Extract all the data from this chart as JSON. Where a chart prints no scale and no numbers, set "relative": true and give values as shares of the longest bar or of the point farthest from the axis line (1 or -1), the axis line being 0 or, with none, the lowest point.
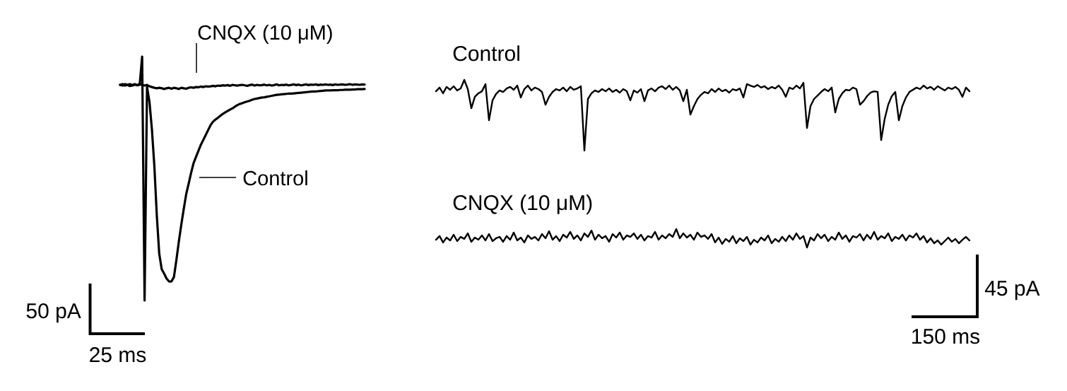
{
  "chart_data": [
    {
      "type": "line",
      "relative": true,
      "categories": [
        null,
        null,
        null,
        null,
        null,
        null,
        null,
        null,
        null,
        null,
        null,
        null,
        null,
        null,
        null,
        null,
        null,
        null,
        null,
        null,
        null,
        null,
        null,
        null,
        null,
        null,
        null,
        null,
        null,
        null,
        null,
        null,
        null,
        null,
        null,
        null,
        null,
        null,
        null,
        null,
        null,
        null,
        null,
        null,
        null,
        null,
        null,
        null,
        null,
        null,
        null,
        null,
        null,
        null,
        null,
        null,
        null,
        null,
        null,
        null,
        null,
        null,
        null,
        null,
        null,
        null,
        null,
        null,
        null,
        null,
        null,
        null,
        null,
        null,
        null,
        null,
        null,
        null,
        null,
        null,
        null,
        null,
        null,
        null,
        null,
        null,
        null,
        null,
        null,
        null,
        null,
        null,
        null,
        null,
        null,
        null,
        null,
        null,
        null,
        null,
        null
      ],
      "series": [
        {
          "name": "Control",
          "color": "#000000",
          "values": [
            0.884,
            0.881,
            0.887,
            0.884,
            0.879,
            0.884,
            0.887,
            0.882,
            0.884,
            1.0,
            0.0,
            0.875,
            0.814,
            0.701,
            0.551,
            0.348,
            0.191,
            0.128,
            0.11,
            0.09,
            0.078,
            0.078,
            0.096,
            0.165,
            0.241,
            0.31,
            0.374,
            0.435,
            0.478,
            0.522,
            0.562,
            0.588,
            0.613,
            0.638,
            0.658,
            0.678,
            0.699,
            0.719,
            0.733,
            0.742,
            0.749,
            0.757,
            0.765,
            0.771,
            0.777,
            0.783,
            0.788,
            0.795,
            0.801,
            0.806,
            0.809,
            0.813,
            0.816,
            0.819,
            0.823,
            0.826,
            0.828,
            0.83,
            0.832,
            0.833,
            0.835,
            0.837,
            0.839,
            0.841,
            0.843,
            0.844,
            0.845,
            0.846,
            0.847,
            0.848,
            0.848,
            0.849,
            0.85,
            0.851,
            0.852,
            0.853,
            0.854,
            0.855,
            0.856,
            0.857,
            0.857,
            0.858,
            0.859,
            0.86,
            0.861,
            0.861,
            0.861,
            0.862,
            0.862,
            0.862,
            0.863,
            0.863,
            0.864,
            0.864,
            0.864,
            0.865,
            0.865,
            0.866,
            0.866,
            0.866,
            0.867
          ]
        },
        {
          "name": "CNQX (10 μM)",
          "color": "#000000",
          "values": [
            0.884,
            0.887,
            0.881,
            0.884,
            0.887,
            0.881,
            0.884,
            0.884,
            0.887,
            0.884,
            0.881,
            0.884,
            0.878,
            0.875,
            0.872,
            0.87,
            0.872,
            0.87,
            0.867,
            0.87,
            0.872,
            0.868,
            0.872,
            0.87,
            0.867,
            0.872,
            0.87,
            0.868,
            0.872,
            0.874,
            0.872,
            0.875,
            0.874,
            0.877,
            0.875,
            0.878,
            0.877,
            0.878,
            0.88,
            0.878,
            0.881,
            0.88,
            0.882,
            0.881,
            0.883,
            0.88,
            0.884,
            0.882,
            0.881,
            0.883,
            0.884,
            0.882,
            0.88,
            0.883,
            0.885,
            0.881,
            0.884,
            0.882,
            0.883,
            0.885,
            0.882,
            0.884,
            0.881,
            0.883,
            0.886,
            0.882,
            0.884,
            0.883,
            0.885,
            0.882,
            0.884,
            0.886,
            0.883,
            0.885,
            0.882,
            0.884,
            0.886,
            0.883,
            0.885,
            0.884,
            0.886,
            0.883,
            0.885,
            0.884,
            0.886,
            0.884,
            0.885,
            0.883,
            0.886,
            0.884,
            0.885,
            0.886,
            0.884,
            0.885,
            0.887,
            0.884,
            0.886,
            0.885,
            0.884,
            0.886,
            0.885
          ]
        }
      ],
      "annotations": [
        "50 pA",
        "25 ms"
      ]
    },
    {
      "type": "line",
      "relative": true,
      "categories": [
        null,
        null,
        null,
        null,
        null,
        null,
        null,
        null,
        null,
        null,
        null,
        null,
        null,
        null,
        null,
        null,
        null,
        null,
        null,
        null,
        null,
        null,
        null,
        null,
        null,
        null,
        null,
        null,
        null,
        null,
        null,
        null,
        null,
        null,
        null,
        null,
        null,
        null,
        null,
        null,
        null,
        null,
        null,
        null,
        null,
        null,
        null,
        null,
        null,
        null,
        null,
        null,
        null,
        null,
        null,
        null,
        null,
        null,
        null,
        null,
        null,
        null,
        null,
        null,
        null,
        null,
        null,
        null,
        null,
        null,
        null,
        null,
        null,
        null,
        null,
        null,
        null,
        null,
        null,
        null,
        null,
        null,
        null,
        null,
        null,
        null,
        null,
        null,
        null,
        null,
        null,
        null,
        null,
        null,
        null,
        null,
        null,
        null,
        null,
        null,
        null,
        null,
        null,
        null,
        null,
        null,
        null,
        null,
        null,
        null,
        null,
        null,
        null,
        null,
        null,
        null,
        null,
        null,
        null,
        null,
        null,
        null,
        null,
        null,
        null,
        null,
        null,
        null,
        null,
        null,
        null,
        null,
        null,
        null,
        null,
        null,
        null,
        null,
        null,
        null,
        null,
        null,
        null,
        null,
        null,
        null,
        null,
        null,
        null,
        null,
        null,
        null
      ],
      "series": [
        {
          "name": "Control",
          "color": "#000000",
          "values": [
            0.932,
            0.954,
            0.92,
            0.958,
            0.941,
            0.962,
            0.937,
            0.949,
            1.0,
            0.945,
            0.831,
            0.899,
            0.92,
            0.932,
            0.975,
            0.759,
            0.878,
            0.916,
            0.937,
            0.928,
            0.949,
            0.958,
            0.941,
            0.966,
            0.895,
            0.945,
            0.966,
            0.937,
            0.954,
            0.945,
            0.928,
            0.852,
            0.899,
            0.928,
            0.945,
            0.937,
            0.954,
            0.932,
            0.958,
            0.941,
            0.949,
            0.962,
            0.578,
            0.886,
            0.92,
            0.937,
            0.928,
            0.945,
            0.932,
            0.949,
            0.928,
            0.941,
            0.924,
            0.945,
            0.932,
            0.878,
            0.937,
            0.924,
            0.945,
            0.873,
            0.937,
            0.949,
            0.932,
            0.954,
            0.962,
            0.945,
            0.966,
            0.941,
            0.958,
            0.937,
            0.873,
            0.941,
            0.793,
            0.844,
            0.886,
            0.911,
            0.928,
            0.92,
            0.945,
            0.928,
            0.949,
            0.932,
            0.941,
            0.924,
            0.945,
            0.937,
            0.949,
            0.895,
            0.975,
            0.966,
            0.958,
            0.97,
            0.954,
            0.962,
            0.945,
            0.958,
            0.949,
            0.966,
            0.941,
            0.899,
            0.954,
            0.945,
            0.966,
            0.949,
            0.983,
            0.713,
            0.844,
            0.886,
            0.907,
            0.928,
            0.945,
            0.932,
            0.954,
            0.806,
            0.886,
            0.92,
            0.941,
            0.937,
            0.954,
            0.945,
            0.852,
            0.873,
            0.903,
            0.924,
            0.932,
            0.928,
            0.641,
            0.768,
            0.852,
            0.903,
            0.928,
            0.759,
            0.844,
            0.895,
            0.928,
            0.941,
            0.954,
            0.945,
            0.966,
            0.949,
            0.958,
            0.941,
            0.962,
            0.949,
            0.937,
            0.954,
            0.945,
            0.958,
            0.941,
            0.899,
            0.954,
            0.932
          ]
        },
        {
          "name": "CNQX (10 μM)",
          "color": "#000000",
          "values": [
            0.046,
            0.068,
            0.03,
            0.059,
            0.042,
            0.076,
            0.038,
            0.063,
            0.051,
            0.084,
            0.034,
            0.059,
            0.046,
            0.072,
            0.042,
            0.08,
            0.038,
            0.055,
            0.063,
            0.034,
            0.068,
            0.046,
            0.089,
            0.042,
            0.059,
            0.03,
            0.072,
            0.051,
            0.063,
            0.042,
            0.08,
            0.055,
            0.097,
            0.046,
            0.068,
            0.038,
            0.076,
            0.059,
            0.093,
            0.051,
            0.072,
            0.042,
            0.084,
            0.063,
            0.101,
            0.046,
            0.076,
            0.055,
            0.068,
            0.034,
            0.08,
            0.059,
            0.089,
            0.046,
            0.072,
            0.063,
            0.084,
            0.051,
            0.076,
            0.042,
            0.068,
            0.059,
            0.093,
            0.046,
            0.072,
            0.055,
            0.08,
            0.063,
            0.11,
            0.055,
            0.084,
            0.059,
            0.076,
            0.046,
            0.089,
            0.063,
            0.072,
            0.051,
            0.08,
            0.03,
            0.059,
            0.021,
            0.051,
            0.034,
            0.068,
            0.025,
            0.055,
            0.038,
            0.063,
            0.017,
            0.046,
            0.03,
            0.059,
            0.042,
            0.072,
            0.025,
            0.051,
            0.034,
            0.063,
            0.038,
            0.072,
            0.046,
            0.084,
            0.051,
            0.068,
            0.0,
            0.059,
            0.042,
            0.08,
            0.055,
            0.076,
            0.038,
            0.063,
            0.046,
            0.089,
            0.051,
            0.072,
            0.034,
            0.068,
            0.059,
            0.08,
            0.042,
            0.076,
            0.051,
            0.093,
            0.046,
            0.068,
            0.055,
            0.084,
            0.038,
            0.063,
            0.051,
            0.076,
            0.042,
            0.072,
            0.059,
            0.084,
            0.046,
            0.068,
            0.03,
            0.055,
            0.025,
            0.042,
            0.017,
            0.038,
            0.059,
            0.034,
            0.051,
            0.025,
            0.046,
            0.063,
            0.042
          ]
        }
      ],
      "annotations": [
        "45 pA",
        "150 ms"
      ]
    }
  ]
}
